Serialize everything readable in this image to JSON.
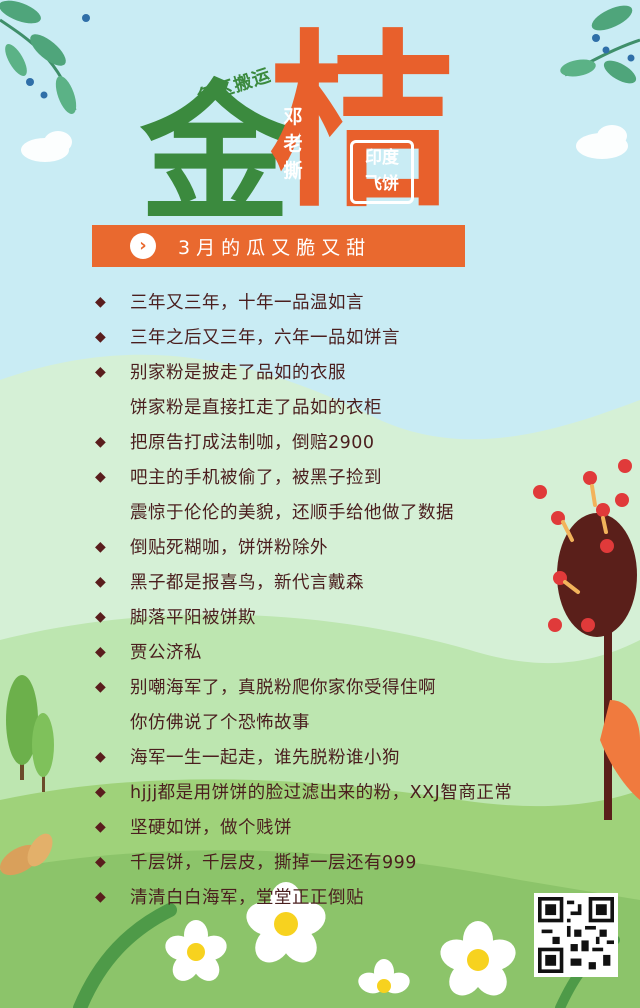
{
  "poster": {
    "tag_top": "兔区搬运",
    "title_char_1": "金",
    "title_char_2": "桔",
    "tag_vertical": "邓老撕",
    "stamp_line_1": "印度",
    "stamp_line_2": "飞饼",
    "banner_text": "3月的瓜又脆又甜",
    "colors": {
      "green": "#3b8a3e",
      "orange": "#e8602c",
      "text": "#4a1e1e",
      "sky": "#c9ecf4",
      "grass": "#9fd27a"
    },
    "items": [
      {
        "bullet": true,
        "text": "三年又三年，十年一品温如言"
      },
      {
        "bullet": true,
        "text": "三年之后又三年，六年一品如饼言"
      },
      {
        "bullet": true,
        "text": "别家粉是披走了品如的衣服"
      },
      {
        "bullet": false,
        "text": "饼家粉是直接扛走了品如的衣柜"
      },
      {
        "bullet": true,
        "text": "把原告打成法制咖，倒赔2900"
      },
      {
        "bullet": true,
        "text": "吧主的手机被偷了，被黑子捡到"
      },
      {
        "bullet": false,
        "text": "震惊于伦伦的美貌，还顺手给他做了数据"
      },
      {
        "bullet": true,
        "text": "倒贴死糊咖，饼饼粉除外"
      },
      {
        "bullet": true,
        "text": "黑子都是报喜鸟，新代言戴森"
      },
      {
        "bullet": true,
        "text": "脚落平阳被饼欺"
      },
      {
        "bullet": true,
        "text": "贾公济私"
      },
      {
        "bullet": true,
        "text": "别嘲海军了，真脱粉爬你家你受得住啊"
      },
      {
        "bullet": false,
        "text": "你仿佛说了个恐怖故事"
      },
      {
        "bullet": true,
        "text": "海军一生一起走，谁先脱粉谁小狗"
      },
      {
        "bullet": true,
        "text": "hjjj都是用饼饼的脸过滤出来的粉，XXJ智商正常"
      },
      {
        "bullet": true,
        "text": "坚硬如饼，做个贱饼"
      },
      {
        "bullet": true,
        "text": "千层饼，千层皮，撕掉一层还有999"
      },
      {
        "bullet": true,
        "text": "清清白白海军，堂堂正正倒贴"
      }
    ]
  }
}
